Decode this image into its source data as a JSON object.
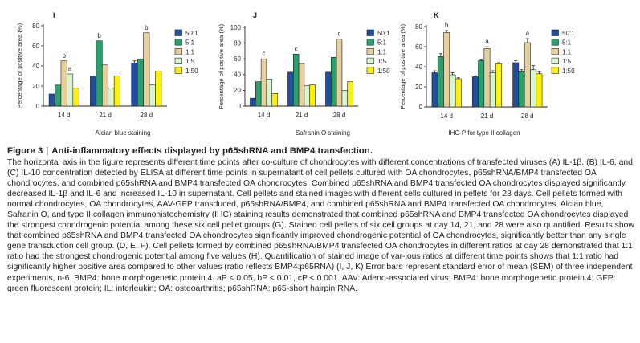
{
  "figure": {
    "label": "Figure 3",
    "separator": "|",
    "title": "Anti-inflammatory effects displayed by p65shRNA and BMP4 transfection.",
    "caption": "The horizontal axis in the figure represents different time points after co-culture of chondrocytes with different concentrations of transfected viruses (A) IL-1β, (B) IL-6, and (C) IL-10 concentration detected by ELISA at different time points in supernatant of cell pellets cultured with OA chondrocytes, p65shRNA/BMP4 transfected OA chondrocytes, and combined p65shRNA and BMP4 transfected OA chondrocytes. Combined p65shRNA and BMP4 transfected OA chondrocytes displayed significantly decreased IL-1β and IL-6 and increased IL-10 in supernatant. Cell pellets and stained images with different cells cultured in pellets for 28 days. Cell pellets formed with normal chondrocytes, OA chondrocytes, AAV-GFP transduced, p65shRNA/BMP4, and combined p65shRNA and BMP4 transfected OA chondrocytes. Alcian blue, Safranin O, and type II collagen immunohistochemistry (IHC) staining results demonstrated that combined p65shRNA and BMP4 transfected OA chondrocytes displayed the strongest chondrogenic potential among these six cell pellet groups (G). Stained cell pellets of six cell groups at day 14, 21, and 28 were also quantified. Results show that combined p65shRNA and BMP4 transfected OA chondrocytes significantly improved chondrogenic potential of OA chondrocytes, significantly better than any single gene transduction cell group. (D, E, F). Cell pellets formed by combined p65shRNA/BMP4 transfected OA chondrocytes in different ratios at day 28 demonstrated that 1:1 ratio had the strongest chondrogenic potential among five values (H). Quantification of stained image of var-ious ratios at different time points shows that 1:1 ratio had significantly higher positive area compared to other values (ratio reflects BMP4:p65RNA) (I, J, K) Error bars represent standard error of mean (SEM) of three independent experiments, n-6. BMP4: bone morphogenetic protein 4. aP < 0.05, bP < 0.01, cP < 0.001. AAV: Adeno-associated virus; BMP4: bone morphogenetic protein 4; GFP: green fluorescent protein; IL: interleukin; OA: osteoarthritis; p65shRNA: p65-short hairpin RNA."
  },
  "palette": [
    "#1f4e9c",
    "#27a06a",
    "#e7cf9c",
    "#d9f5d0",
    "#fff200"
  ],
  "chart_data": [
    {
      "type": "bar",
      "panel": "I",
      "caption": "Alcian blue staining",
      "ylabel": "Percentage of positive area (%)",
      "ylim": [
        0,
        80
      ],
      "yticks": [
        0,
        20,
        40,
        60,
        80
      ],
      "categories": [
        "14 d",
        "21 d",
        "28 d"
      ],
      "series": [
        {
          "name": "50:1",
          "values": [
            12,
            30,
            43
          ]
        },
        {
          "name": "5:1",
          "values": [
            21,
            65,
            47
          ]
        },
        {
          "name": "1:1",
          "values": [
            45,
            41,
            73
          ]
        },
        {
          "name": "1:5",
          "values": [
            32,
            18,
            21
          ]
        },
        {
          "name": "1:50",
          "values": [
            18,
            30,
            35
          ]
        }
      ],
      "error": [
        [
          0,
          0,
          0,
          0,
          0
        ],
        [
          0,
          0,
          0,
          0,
          0
        ],
        [
          2,
          0,
          0,
          0,
          0
        ]
      ],
      "annotations": [
        {
          "category": 0,
          "series": 2,
          "text": "b"
        },
        {
          "category": 0,
          "series": 3,
          "text": "a"
        },
        {
          "category": 1,
          "series": 1,
          "text": "b"
        },
        {
          "category": 2,
          "series": 2,
          "text": "b"
        }
      ],
      "legend": "right"
    },
    {
      "type": "bar",
      "panel": "J",
      "caption": "Safranin O staining",
      "ylabel": "Percentage of positive area (%)",
      "ylim": [
        0,
        100
      ],
      "yticks": [
        0,
        20,
        40,
        60,
        80,
        100
      ],
      "categories": [
        "14 d",
        "21 d",
        "28 d"
      ],
      "series": [
        {
          "name": "50:1",
          "values": [
            10,
            43,
            43
          ]
        },
        {
          "name": "5:1",
          "values": [
            31,
            66,
            62
          ]
        },
        {
          "name": "1:1",
          "values": [
            60,
            54,
            85
          ]
        },
        {
          "name": "1:5",
          "values": [
            34,
            26,
            20
          ]
        },
        {
          "name": "1:50",
          "values": [
            16,
            27,
            31
          ]
        }
      ],
      "error": [
        [
          0,
          0,
          0,
          0,
          0
        ],
        [
          0,
          0,
          0,
          0,
          0
        ],
        [
          0,
          0,
          0,
          0,
          0
        ]
      ],
      "annotations": [
        {
          "category": 0,
          "series": 2,
          "text": "c"
        },
        {
          "category": 1,
          "series": 1,
          "text": "c"
        },
        {
          "category": 2,
          "series": 2,
          "text": "c"
        }
      ],
      "legend": "right"
    },
    {
      "type": "bar",
      "panel": "K",
      "caption": "IHC-P for type II collagen",
      "ylabel": "Percentage of positive area (%)",
      "ylim": [
        0,
        80
      ],
      "yticks": [
        0,
        20,
        40,
        60,
        80
      ],
      "categories": [
        "14 d",
        "21 d",
        "28 d"
      ],
      "series": [
        {
          "name": "50:1",
          "values": [
            34,
            30,
            44
          ]
        },
        {
          "name": "5:1",
          "values": [
            50,
            46,
            35
          ]
        },
        {
          "name": "1:1",
          "values": [
            74,
            58,
            64
          ]
        },
        {
          "name": "1:5",
          "values": [
            32,
            34,
            37
          ]
        },
        {
          "name": "1:50",
          "values": [
            28,
            43,
            33
          ]
        }
      ],
      "error": [
        [
          2,
          3,
          2,
          2,
          1
        ],
        [
          1,
          1,
          2,
          2,
          1
        ],
        [
          2,
          2,
          4,
          4,
          2
        ]
      ],
      "annotations": [
        {
          "category": 0,
          "series": 2,
          "text": "b"
        },
        {
          "category": 1,
          "series": 2,
          "text": "a"
        },
        {
          "category": 2,
          "series": 2,
          "text": "a"
        }
      ],
      "legend": "right"
    }
  ]
}
